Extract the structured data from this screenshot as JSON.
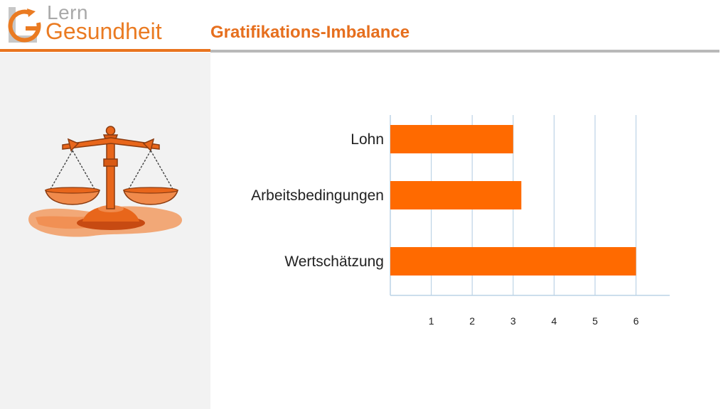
{
  "header": {
    "logo": {
      "line1": "Lern",
      "line2": "Gesundheit"
    },
    "title": "Gratifikations-Imbalance"
  },
  "sidebar": {
    "image": "balance-scale-icon"
  },
  "colors": {
    "accent": "#e9741f",
    "bar": "#ff6a00",
    "grid": "#bcd3e6",
    "rule": "#b9b9b9"
  },
  "chart_data": {
    "type": "bar",
    "orientation": "horizontal",
    "categories": [
      "Lohn",
      "Arbeitsbedingungen",
      "Wertschätzung"
    ],
    "values": [
      3,
      3.2,
      6
    ],
    "xticks": [
      "1",
      "2",
      "3",
      "4",
      "5",
      "6"
    ],
    "xlim": [
      0,
      6.8
    ],
    "grid": true,
    "title": "",
    "xlabel": "",
    "ylabel": ""
  }
}
